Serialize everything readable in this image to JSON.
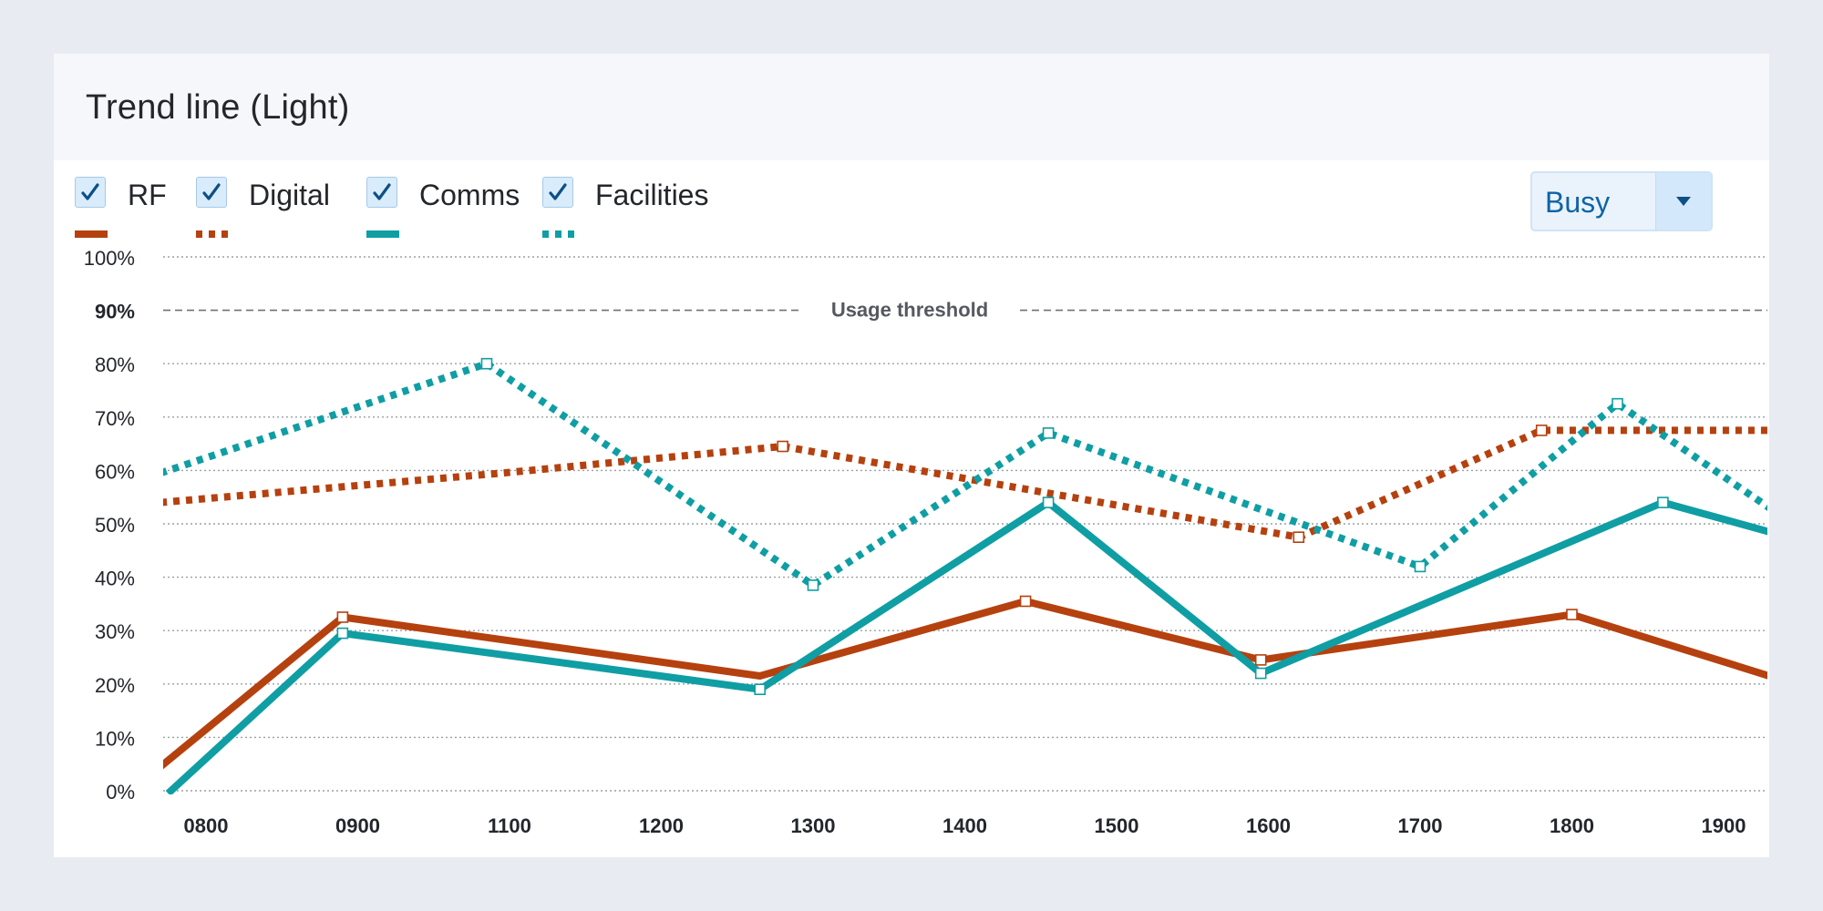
{
  "card": {
    "title": "Trend line (Light)"
  },
  "legend": [
    {
      "label": "RF",
      "checked": true,
      "color": "#b5410f",
      "dash": "solid"
    },
    {
      "label": "Digital",
      "checked": true,
      "color": "#b5410f",
      "dash": "dotted"
    },
    {
      "label": "Comms",
      "checked": true,
      "color": "#0f9ea3",
      "dash": "solid"
    },
    {
      "label": "Facilities",
      "checked": true,
      "color": "#0f9ea3",
      "dash": "dotted"
    }
  ],
  "dropdown": {
    "value": "Busy",
    "icon": "caret-down-icon"
  },
  "chart_data": {
    "type": "line",
    "x_ticks": [
      "0800",
      "0900",
      "1100",
      "1200",
      "1300",
      "1400",
      "1500",
      "1600",
      "1700",
      "1800",
      "1900"
    ],
    "y_ticks": [
      "0%",
      "10%",
      "20%",
      "30%",
      "40%",
      "50%",
      "60%",
      "70%",
      "80%",
      "100%"
    ],
    "ylim": [
      0,
      100
    ],
    "xlim": [
      0,
      10.3
    ],
    "grid": true,
    "threshold": {
      "value": 90,
      "tick_label": "90%",
      "label": "Usage threshold"
    },
    "series": [
      {
        "name": "RF",
        "color": "#b5410f",
        "dash": "solid",
        "points": [
          [
            -0.3,
            4.5
          ],
          [
            0.9,
            32.5
          ],
          [
            3.65,
            21.5
          ],
          [
            5.4,
            35.5
          ],
          [
            6.95,
            24.5
          ],
          [
            9.0,
            33.0
          ],
          [
            10.3,
            21.5
          ]
        ],
        "markers": [
          [
            0.9,
            32.5
          ],
          [
            5.4,
            35.5
          ],
          [
            6.95,
            24.5
          ],
          [
            9.0,
            33.0
          ]
        ]
      },
      {
        "name": "Digital",
        "color": "#b5410f",
        "dash": "dotted",
        "points": [
          [
            -0.3,
            54
          ],
          [
            1.95,
            59.5
          ],
          [
            3.8,
            64.5
          ],
          [
            7.2,
            47.5
          ],
          [
            8.8,
            67.5
          ],
          [
            10.3,
            67.5
          ]
        ],
        "markers": [
          [
            3.8,
            64.5
          ],
          [
            7.2,
            47.5
          ],
          [
            8.8,
            67.5
          ]
        ]
      },
      {
        "name": "Comms",
        "color": "#0f9ea3",
        "dash": "solid",
        "points": [
          [
            -0.25,
            -0.5
          ],
          [
            0.9,
            29.5
          ],
          [
            3.65,
            19.0
          ],
          [
            5.55,
            54.0
          ],
          [
            6.95,
            22.0
          ],
          [
            9.6,
            54.0
          ],
          [
            10.3,
            48.5
          ]
        ],
        "markers": [
          [
            0.9,
            29.5
          ],
          [
            3.65,
            19.0
          ],
          [
            5.55,
            54.0
          ],
          [
            6.95,
            22.0
          ],
          [
            9.6,
            54.0
          ]
        ]
      },
      {
        "name": "Facilities",
        "color": "#0f9ea3",
        "dash": "dotted",
        "points": [
          [
            -0.3,
            59.5
          ],
          [
            1.85,
            80.0
          ],
          [
            4.0,
            38.5
          ],
          [
            5.55,
            67.0
          ],
          [
            8.0,
            42.0
          ],
          [
            9.3,
            72.5
          ],
          [
            10.3,
            53.0
          ]
        ],
        "markers": [
          [
            1.85,
            80.0
          ],
          [
            4.0,
            38.5
          ],
          [
            5.55,
            67.0
          ],
          [
            8.0,
            42.0
          ],
          [
            9.3,
            72.5
          ]
        ]
      }
    ]
  }
}
